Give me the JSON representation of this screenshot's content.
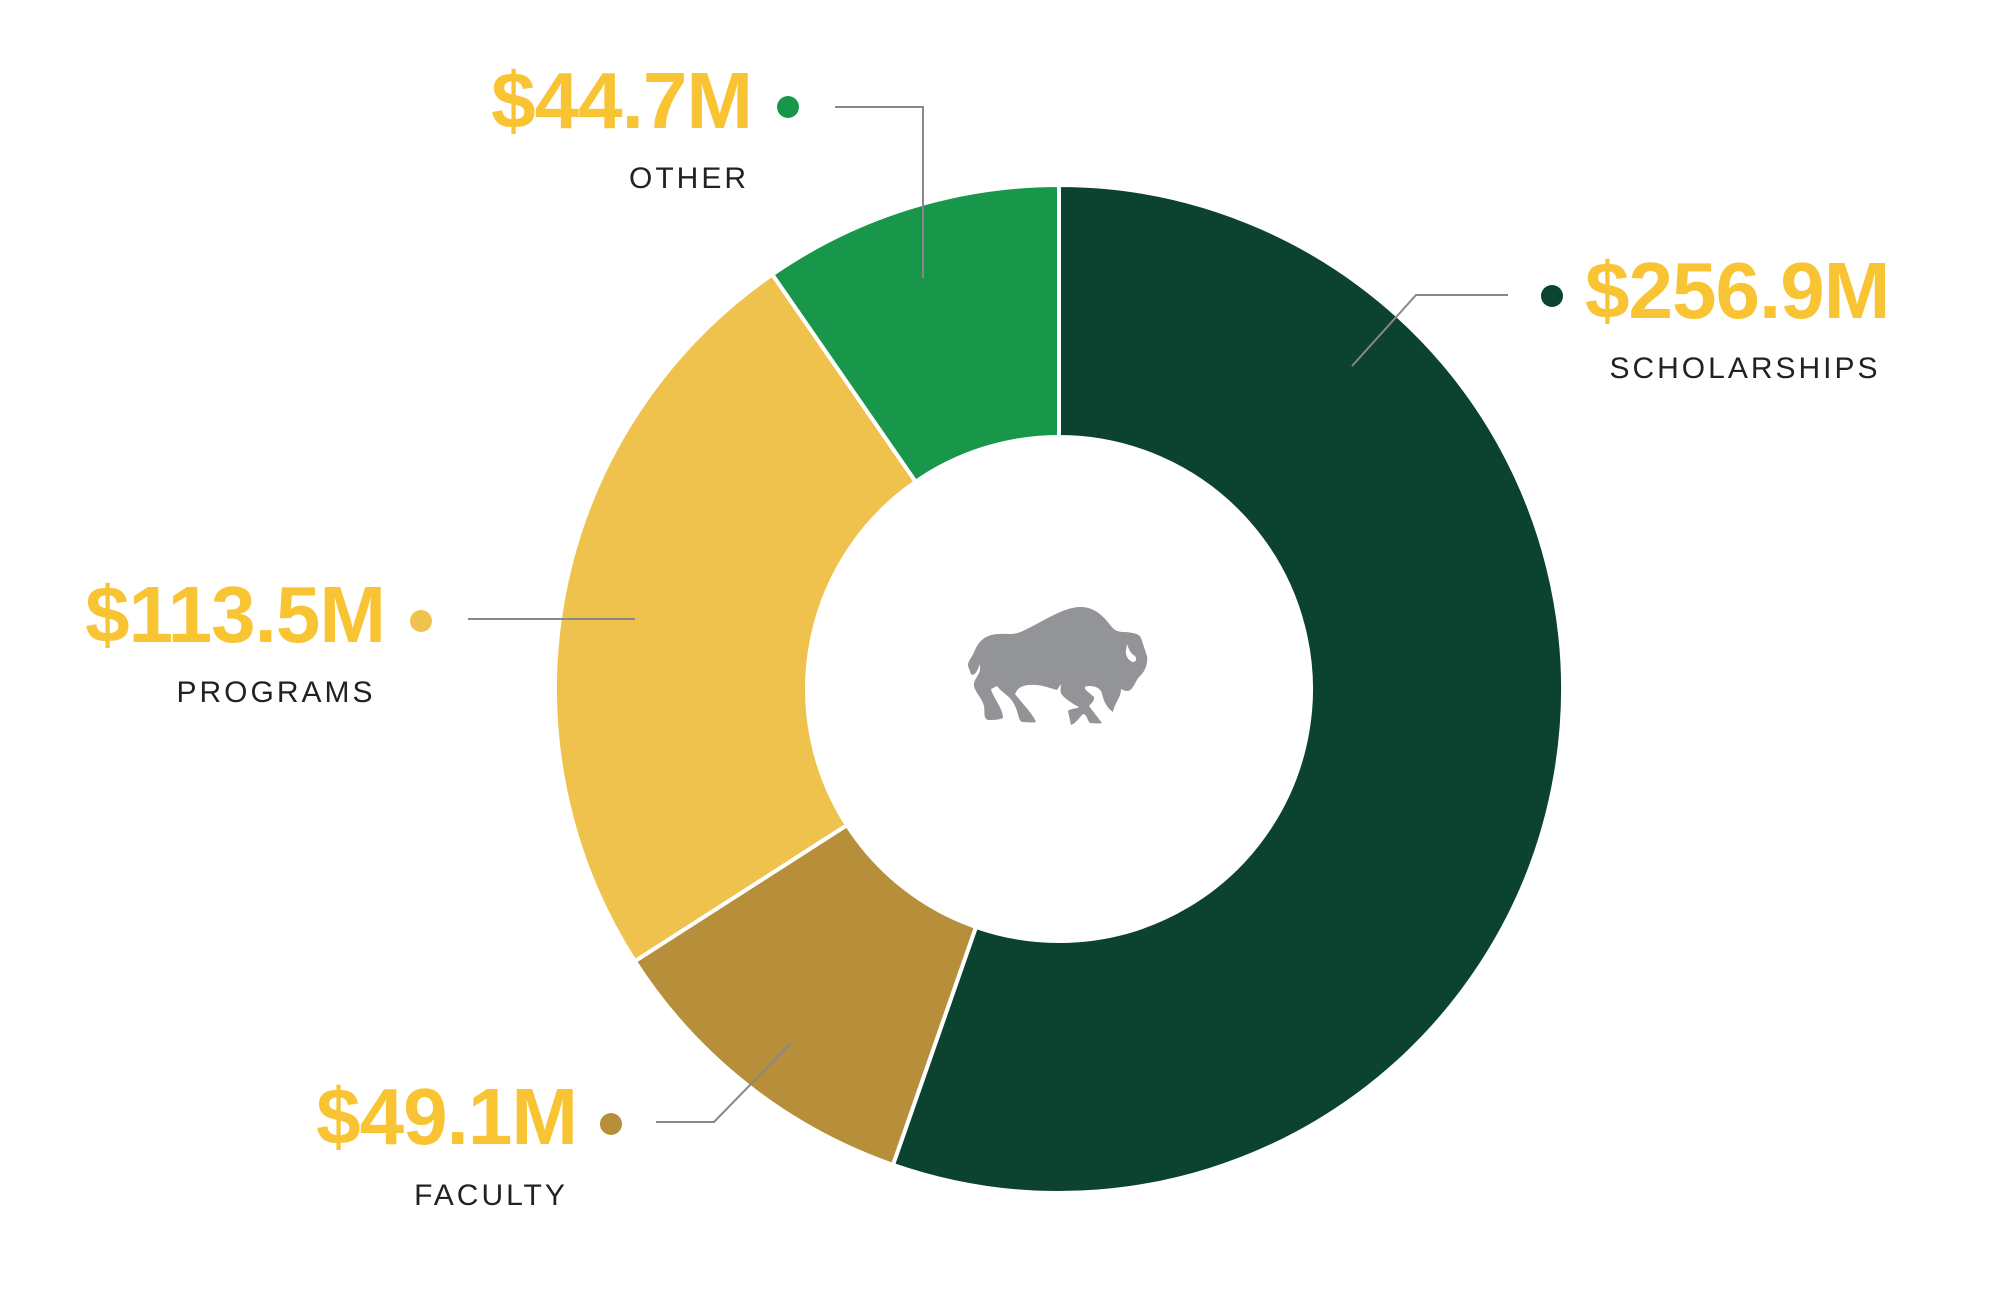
{
  "chart_data": {
    "type": "pie",
    "variant": "donut",
    "title": "",
    "units": "USD millions",
    "categories": [
      "Scholarships",
      "Faculty",
      "Programs",
      "Other"
    ],
    "series": [
      {
        "name": "Scholarships",
        "value": 256.9,
        "label": "$256.9M",
        "category_label": "SCHOLARSHIPS",
        "color": "#0C4330"
      },
      {
        "name": "Faculty",
        "value": 49.1,
        "label": "$49.1M",
        "category_label": "FACULTY",
        "color": "#B78F3A"
      },
      {
        "name": "Programs",
        "value": 113.5,
        "label": "$113.5M",
        "category_label": "PROGRAMS",
        "color": "#EFC24D"
      },
      {
        "name": "Other",
        "value": 44.7,
        "label": "$44.7M",
        "category_label": "OTHER",
        "color": "#18964A"
      }
    ],
    "start_angle_deg": 0,
    "direction": "clockwise",
    "center_icon": "bison-logo-icon",
    "value_label_color": "#F9C433",
    "legend": "none"
  }
}
